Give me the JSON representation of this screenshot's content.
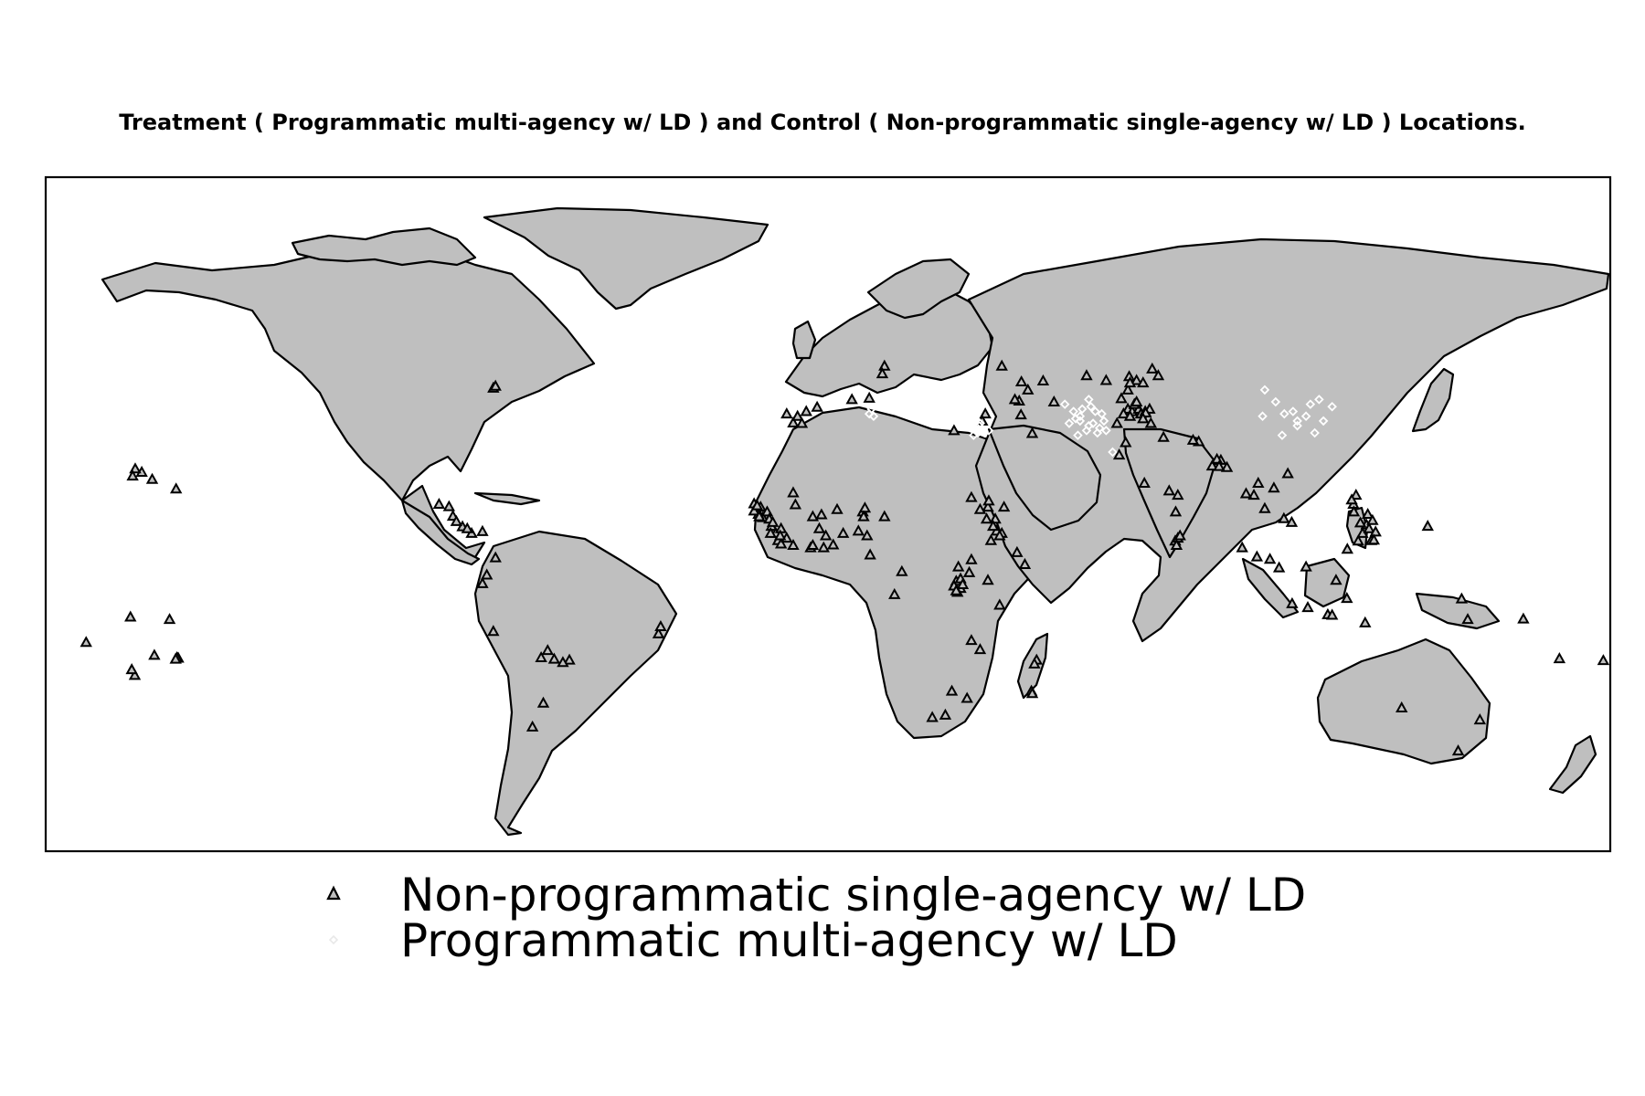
{
  "title": "Treatment ( Programmatic multi-agency w/ LD ) and Control ( Non-programmatic single-agency w/ LD ) Locations.",
  "map": {
    "projection": "equirectangular",
    "lon_range": [
      -180,
      180
    ],
    "lat_range": [
      -58,
      83
    ],
    "land_color": "#bfbfbf",
    "border_color": "#000000",
    "ocean_color": "#ffffff"
  },
  "legend": [
    {
      "label": "Non-programmatic single-agency w/ LD",
      "marker": "triangle",
      "color": "#000000"
    },
    {
      "label": "Programmatic multi-agency w/ LD",
      "marker": "diamond",
      "color": "#ffffff"
    }
  ],
  "locations": {
    "control": [
      [
        -157.9,
        21.3
      ],
      [
        -155.5,
        19.8
      ],
      [
        -159.4,
        22.0
      ],
      [
        -150.0,
        17.8
      ],
      [
        -160.0,
        20.5
      ],
      [
        -170.7,
        -14.3
      ],
      [
        -159.5,
        -21.2
      ],
      [
        -149.5,
        -17.6
      ],
      [
        -160.5,
        -9.0
      ],
      [
        -151.5,
        -9.5
      ],
      [
        -149.8,
        -17.5
      ],
      [
        -150.1,
        -17.8
      ],
      [
        -155.0,
        -17.0
      ],
      [
        -160.2,
        -20.0
      ],
      [
        -77.0,
        38.9
      ],
      [
        -76.5,
        39.3
      ],
      [
        -89.5,
        14.6
      ],
      [
        -87.2,
        14.1
      ],
      [
        -86.3,
        12.1
      ],
      [
        -84.1,
        9.9
      ],
      [
        -85.5,
        11.0
      ],
      [
        -79.5,
        8.9
      ],
      [
        -82.0,
        8.5
      ],
      [
        -83.0,
        9.5
      ],
      [
        -76.5,
        3.4
      ],
      [
        -78.5,
        -0.2
      ],
      [
        -79.5,
        -2.0
      ],
      [
        -77.0,
        -12.0
      ],
      [
        -59.5,
        -18.0
      ],
      [
        -64.5,
        -16.0
      ],
      [
        -63.0,
        -17.8
      ],
      [
        -66.0,
        -17.5
      ],
      [
        -39.0,
        -12.5
      ],
      [
        -38.5,
        -11.0
      ],
      [
        -68.0,
        -32.0
      ],
      [
        -65.5,
        -27.0
      ],
      [
        -61.0,
        -18.5
      ],
      [
        -9.5,
        33.5
      ],
      [
        -8.0,
        31.6
      ],
      [
        -7.0,
        33.0
      ],
      [
        -6.0,
        31.5
      ],
      [
        -5.0,
        34.0
      ],
      [
        -17.0,
        14.7
      ],
      [
        -16.5,
        13.5
      ],
      [
        -15.0,
        11.8
      ],
      [
        -13.0,
        10.0
      ],
      [
        -16.0,
        12.5
      ],
      [
        -15.5,
        14.0
      ],
      [
        -14.0,
        13.0
      ],
      [
        -12.0,
        8.5
      ],
      [
        -11.5,
        7.0
      ],
      [
        -13.5,
        11.5
      ],
      [
        -17.0,
        13.2
      ],
      [
        -15.8,
        12.0
      ],
      [
        -16.3,
        14.3
      ],
      [
        -10.8,
        9.5
      ],
      [
        -12.7,
        10.8
      ],
      [
        -1.5,
        12.4
      ],
      [
        -3.5,
        12.0
      ],
      [
        2.1,
        13.5
      ],
      [
        8.0,
        13.0
      ],
      [
        8.5,
        13.8
      ],
      [
        -0.5,
        8.0
      ],
      [
        3.5,
        8.5
      ],
      [
        -2.0,
        9.5
      ],
      [
        1.2,
        6.1
      ],
      [
        -4.0,
        5.5
      ],
      [
        7.0,
        9.0
      ],
      [
        9.0,
        8.0
      ],
      [
        8.2,
        12.0
      ],
      [
        13.0,
        12.0
      ],
      [
        -8.0,
        17.0
      ],
      [
        -7.5,
        14.5
      ],
      [
        30.0,
        1.5
      ],
      [
        33.0,
        3.0
      ],
      [
        38.8,
        9.0
      ],
      [
        37.5,
        7.0
      ],
      [
        38.5,
        11.5
      ],
      [
        40.0,
        8.5
      ],
      [
        36.8,
        14.0
      ],
      [
        36.5,
        11.5
      ],
      [
        38.0,
        10.0
      ],
      [
        40.5,
        14.0
      ],
      [
        33.0,
        16.0
      ],
      [
        35.0,
        13.5
      ],
      [
        37.0,
        15.3
      ],
      [
        39.5,
        8.0
      ],
      [
        30.0,
        -2.0
      ],
      [
        29.5,
        -1.5
      ],
      [
        30.5,
        -1.0
      ],
      [
        29.0,
        -2.5
      ],
      [
        36.8,
        -1.3
      ],
      [
        39.5,
        -6.5
      ],
      [
        30.5,
        -3.0
      ],
      [
        29.8,
        -3.8
      ],
      [
        29.5,
        -3.5
      ],
      [
        32.5,
        0.3
      ],
      [
        31.0,
        -2.2
      ],
      [
        48.0,
        -18.0
      ],
      [
        47.5,
        -18.8
      ],
      [
        46.8,
        -24.5
      ],
      [
        47.0,
        -25.0
      ],
      [
        35.0,
        -15.8
      ],
      [
        33.0,
        -13.9
      ],
      [
        32.0,
        -26.0
      ],
      [
        28.5,
        -24.5
      ],
      [
        24.0,
        -30.0
      ],
      [
        27.0,
        -29.5
      ],
      [
        17.0,
        0.5
      ],
      [
        9.7,
        4.0
      ],
      [
        15.3,
        -4.3
      ],
      [
        29.0,
        30.0
      ],
      [
        40.0,
        43.5
      ],
      [
        44.5,
        40.2
      ],
      [
        46.0,
        38.5
      ],
      [
        13.0,
        43.5
      ],
      [
        12.5,
        41.9
      ],
      [
        69.0,
        34.5
      ],
      [
        66.5,
        31.5
      ],
      [
        70.0,
        34.0
      ],
      [
        67.5,
        36.7
      ],
      [
        71.5,
        34.5
      ],
      [
        72.0,
        33.5
      ],
      [
        73.0,
        34.0
      ],
      [
        74.0,
        34.5
      ],
      [
        70.5,
        35.5
      ],
      [
        71.0,
        36.0
      ],
      [
        68.0,
        33.5
      ],
      [
        69.5,
        33.0
      ],
      [
        74.3,
        31.5
      ],
      [
        73.1,
        33.7
      ],
      [
        72.5,
        32.5
      ],
      [
        67.0,
        24.9
      ],
      [
        68.5,
        27.5
      ],
      [
        77.2,
        28.6
      ],
      [
        85.3,
        27.7
      ],
      [
        84.0,
        28.0
      ],
      [
        88.4,
        22.6
      ],
      [
        90.4,
        23.8
      ],
      [
        91.8,
        22.3
      ],
      [
        89.5,
        24.0
      ],
      [
        90.0,
        22.5
      ],
      [
        80.0,
        13.0
      ],
      [
        79.9,
        6.9
      ],
      [
        80.5,
        7.5
      ],
      [
        81.0,
        8.0
      ],
      [
        80.2,
        6.0
      ],
      [
        98.0,
        16.5
      ],
      [
        96.2,
        16.8
      ],
      [
        99.0,
        19.0
      ],
      [
        100.5,
        13.7
      ],
      [
        102.6,
        18.0
      ],
      [
        104.9,
        11.6
      ],
      [
        105.8,
        21.0
      ],
      [
        106.7,
        10.8
      ],
      [
        103.8,
        1.3
      ],
      [
        101.7,
        3.1
      ],
      [
        98.7,
        3.6
      ],
      [
        95.3,
        5.5
      ],
      [
        120.9,
        14.6
      ],
      [
        121.0,
        13.0
      ],
      [
        123.9,
        10.3
      ],
      [
        125.0,
        7.0
      ],
      [
        122.5,
        10.7
      ],
      [
        124.2,
        12.5
      ],
      [
        121.5,
        16.5
      ],
      [
        120.5,
        15.5
      ],
      [
        123.0,
        8.5
      ],
      [
        124.5,
        9.5
      ],
      [
        126.0,
        8.8
      ],
      [
        122.0,
        6.9
      ],
      [
        119.5,
        5.2
      ],
      [
        125.6,
        7.1
      ],
      [
        125.3,
        11.2
      ],
      [
        147.2,
        -9.5
      ],
      [
        145.8,
        -5.2
      ],
      [
        160.0,
        -9.4
      ],
      [
        168.3,
        -17.7
      ],
      [
        178.4,
        -18.1
      ],
      [
        115.0,
        -8.5
      ],
      [
        116.0,
        -8.6
      ],
      [
        123.6,
        -10.2
      ],
      [
        106.8,
        -6.2
      ],
      [
        110.4,
        -7.0
      ],
      [
        116.9,
        -1.3
      ],
      [
        110.0,
        1.5
      ],
      [
        119.4,
        -5.1
      ],
      [
        138.0,
        10.0
      ],
      [
        52.0,
        36.0
      ],
      [
        49.5,
        40.4
      ],
      [
        59.5,
        41.5
      ],
      [
        64.0,
        40.5
      ],
      [
        69.3,
        41.3
      ],
      [
        71.0,
        40.5
      ],
      [
        74.6,
        42.9
      ],
      [
        76.0,
        41.5
      ],
      [
        69.0,
        38.5
      ],
      [
        72.5,
        40.0
      ],
      [
        47.0,
        29.4
      ],
      [
        44.4,
        33.3
      ],
      [
        36.2,
        33.5
      ],
      [
        44.0,
        36.2
      ],
      [
        35.5,
        32.0
      ],
      [
        43.0,
        36.5
      ],
      [
        -2.5,
        34.9
      ],
      [
        9.5,
        36.8
      ],
      [
        5.5,
        36.5
      ],
      [
        45.3,
        2.0
      ],
      [
        43.5,
        4.5
      ],
      [
        -3.5,
        6.0
      ],
      [
        -1.0,
        5.5
      ],
      [
        -8.0,
        6.0
      ],
      [
        -10.8,
        6.3
      ],
      [
        -9.5,
        7.5
      ],
      [
        -13.2,
        8.5
      ],
      [
        -11.0,
        8.0
      ],
      [
        72.8,
        19.0
      ],
      [
        78.5,
        17.4
      ],
      [
        80.5,
        16.5
      ],
      [
        69.5,
        40.0
      ],
      [
        145.0,
        -37.0
      ],
      [
        150.0,
        -30.5
      ],
      [
        132.0,
        -28.0
      ]
    ],
    "treatment": [
      [
        61.5,
        34.0
      ],
      [
        60.0,
        36.5
      ],
      [
        58.5,
        34.5
      ],
      [
        63.0,
        33.5
      ],
      [
        60.5,
        35.0
      ],
      [
        58.0,
        33.0
      ],
      [
        59.5,
        30.0
      ],
      [
        57.0,
        32.5
      ],
      [
        56.5,
        34.0
      ],
      [
        55.5,
        31.5
      ],
      [
        61.0,
        31.5
      ],
      [
        62.5,
        30.5
      ],
      [
        60.0,
        31.0
      ],
      [
        58.0,
        32.0
      ],
      [
        54.5,
        35.5
      ],
      [
        57.5,
        29.0
      ],
      [
        65.5,
        25.5
      ],
      [
        64.0,
        30.0
      ],
      [
        62.0,
        29.5
      ],
      [
        63.5,
        32.0
      ],
      [
        100.0,
        33.0
      ],
      [
        100.5,
        38.5
      ],
      [
        105.0,
        33.5
      ],
      [
        107.0,
        34.0
      ],
      [
        103.0,
        36.0
      ],
      [
        108.0,
        31.0
      ],
      [
        111.0,
        35.5
      ],
      [
        113.0,
        36.5
      ],
      [
        110.0,
        33.0
      ],
      [
        116.0,
        35.0
      ],
      [
        114.0,
        32.0
      ],
      [
        112.0,
        29.5
      ],
      [
        104.5,
        29.0
      ],
      [
        108.0,
        32.0
      ],
      [
        10.0,
        34.5
      ],
      [
        9.5,
        33.5
      ],
      [
        10.5,
        33.0
      ],
      [
        34.0,
        30.0
      ],
      [
        33.0,
        30.5
      ],
      [
        34.5,
        29.5
      ],
      [
        35.0,
        31.5
      ],
      [
        33.5,
        29.0
      ],
      [
        36.0,
        29.5
      ],
      [
        37.0,
        30.0
      ],
      [
        34.8,
        31.0
      ]
    ]
  }
}
